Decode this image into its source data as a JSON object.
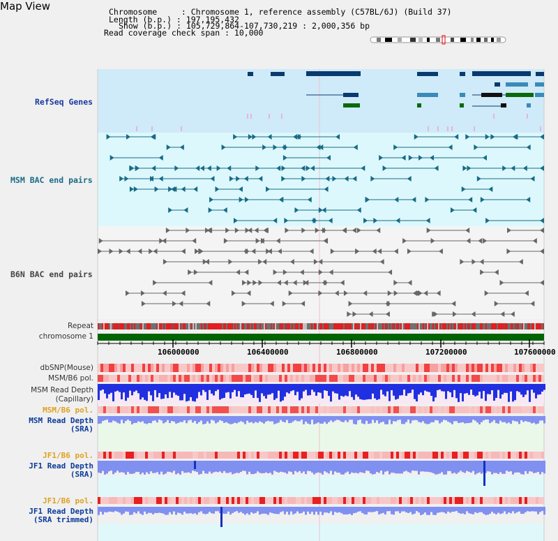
{
  "page": {
    "title": "Map View"
  },
  "info": {
    "lines": [
      "Chromosome     : Chromosome 1, reference assembly (C57BL/6J) (Build 37)",
      "Length (b.p.) : 197,195,432",
      "Show (b.p.) : 105,729,864-107,730,219 : 2,000,356 bp",
      "Read coverage check span : 10,000"
    ]
  },
  "tracks": {
    "refseq": "RefSeq Genes",
    "msm_bac": "MSM BAC end pairs",
    "b6n_bac": "B6N BAC end pairs",
    "repeat": "Repeat",
    "chromosome": "chromosome 1",
    "dbsnp": "dbSNP(Mouse)",
    "msm_b6_pol_1": "MSM/B6 pol.",
    "msm_depth_cap_1": "MSM Read Depth",
    "msm_depth_cap_2": "(Capillary)",
    "msm_b6_pol_2": "MSM/B6 pol.",
    "msm_depth_sra_1": "MSM Read Depth",
    "msm_depth_sra_2": "(SRA)",
    "jf1_b6_pol_1": "JF1/B6 pol.",
    "jf1_depth_sra_1": "JF1 Read Depth",
    "jf1_depth_sra_2": "(SRA)",
    "jf1_b6_pol_2": "JF1/B6 pol.",
    "jf1_depth_trim_1": "JF1 Read Depth",
    "jf1_depth_trim_2": "(SRA trimmed)"
  },
  "axis": {
    "ticks": [
      "106000000",
      "106400000",
      "106800000",
      "107200000",
      "107600000"
    ]
  },
  "colors": {
    "refseq_bg": "#cfeaf8",
    "msm_bg": "#dcf8fc",
    "gene_dark": "#0a3a6e",
    "gene_mid": "#3a8ab8",
    "gene_green": "#0a6a0a",
    "bac_teal": "#1a6a86",
    "bac_gray": "#666666",
    "chromosome": "#006400",
    "snp_red": "#f03030",
    "depth_blue": "#1020d0",
    "depth_light": "#8090f0"
  }
}
